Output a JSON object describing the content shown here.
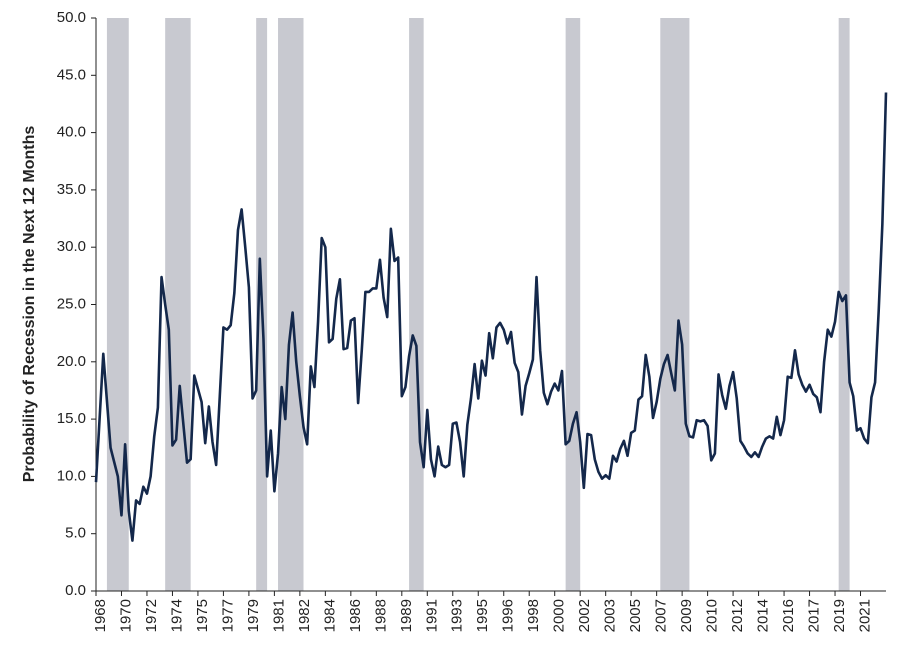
{
  "chart_data": {
    "type": "line",
    "y_label": "Probability of Recession in the Next 12 Months",
    "color": "#14284b",
    "recession_color": "#c8c9d0",
    "recessions": [
      [
        1968.75,
        1970.25
      ],
      [
        1972.75,
        1974.5
      ],
      [
        1979.0,
        1979.75
      ],
      [
        1980.5,
        1982.25
      ],
      [
        1989.5,
        1990.5
      ],
      [
        2000.25,
        2001.25
      ],
      [
        2006.75,
        2008.75
      ],
      [
        2019.0,
        2019.75
      ]
    ],
    "x": [
      1968,
      1968.5,
      1969,
      1969.5,
      1969.75,
      1970,
      1970.25,
      1970.5,
      1970.75,
      1971,
      1971.25,
      1971.5,
      1971.75,
      1972,
      1972.25,
      1972.5,
      1972.75,
      1973,
      1973.25,
      1973.5,
      1973.75,
      1974.25,
      1974.5,
      1974.75,
      1975.25,
      1975.5,
      1975.75,
      1976,
      1976.25,
      1976.5,
      1976.75,
      1977,
      1977.25,
      1977.5,
      1977.75,
      1978,
      1978.25,
      1978.5,
      1978.75,
      1979,
      1979.25,
      1979.5,
      1979.75,
      1980,
      1980.25,
      1980.5,
      1980.75,
      1981,
      1981.25,
      1981.5,
      1981.75,
      1982,
      1982.25,
      1982.5,
      1982.75,
      1983,
      1983.25,
      1983.5,
      1983.75,
      1984,
      1984.25,
      1984.5,
      1984.75,
      1985,
      1985.25,
      1985.5,
      1985.75,
      1986,
      1986.25,
      1986.5,
      1986.75,
      1987,
      1987.25,
      1987.5,
      1987.75,
      1988,
      1988.25,
      1988.5,
      1988.75,
      1989,
      1989.25,
      1989.5,
      1989.75,
      1990,
      1990.25,
      1990.5,
      1990.75,
      1991,
      1991.25,
      1991.5,
      1991.75,
      1992,
      1992.25,
      1992.5,
      1992.75,
      1993,
      1993.25,
      1993.5,
      1993.75,
      1994,
      1994.25,
      1994.5,
      1994.75,
      1995,
      1995.25,
      1995.5,
      1995.75,
      1996,
      1996.25,
      1996.5,
      1996.75,
      1997,
      1997.25,
      1997.5,
      1997.75,
      1998,
      1998.25,
      1998.5,
      1998.75,
      1999,
      1999.25,
      1999.5,
      1999.75,
      2000,
      2000.25,
      2000.5,
      2000.75,
      2001,
      2001.25,
      2001.5,
      2001.75,
      2002,
      2002.25,
      2002.5,
      2002.75,
      2003,
      2003.25,
      2003.5,
      2003.75,
      2004,
      2004.25,
      2004.5,
      2004.75,
      2005,
      2005.25,
      2005.5,
      2005.75,
      2006,
      2006.25,
      2006.5,
      2006.75,
      2007,
      2007.25,
      2007.5,
      2007.75,
      2008,
      2008.25,
      2008.5,
      2008.75,
      2009,
      2009.25,
      2009.5,
      2009.75,
      2010,
      2010.25,
      2010.5,
      2010.75,
      2011,
      2011.25,
      2011.5,
      2011.75,
      2012,
      2012.25,
      2012.5,
      2012.75,
      2013,
      2013.25,
      2013.5,
      2013.75,
      2014,
      2014.25,
      2014.5,
      2014.75,
      2015,
      2015.25,
      2015.5,
      2015.75,
      2016,
      2016.25,
      2016.5,
      2016.75,
      2017,
      2017.25,
      2017.5,
      2017.75,
      2018,
      2018.25,
      2018.5,
      2018.75,
      2019,
      2019.25,
      2019.5,
      2019.75,
      2020,
      2020.25,
      2020.5,
      2020.75,
      2021,
      2021.25,
      2021.5,
      2021.75,
      2022,
      2022.25
    ],
    "values": [
      9.5,
      20.7,
      12.5,
      10,
      6.6,
      12.8,
      7,
      4.4,
      7.9,
      7.6,
      9.1,
      8.5,
      10,
      13.5,
      16,
      27.4,
      25,
      22.8,
      12.7,
      13.2,
      17.9,
      11.2,
      11.5,
      18.8,
      16.5,
      12.9,
      16.1,
      13,
      11,
      17,
      23,
      22.8,
      23.2,
      26,
      31.5,
      33.3,
      30,
      26.5,
      16.8,
      17.5,
      29,
      22,
      10,
      14,
      8.7,
      12,
      17.8,
      15,
      21.5,
      24.3,
      20,
      17,
      14.3,
      12.8,
      19.6,
      17.8,
      23.5,
      30.8,
      30,
      21.7,
      22,
      25.5,
      27.2,
      21.1,
      21.2,
      23.6,
      23.8,
      16.4,
      21,
      26.1,
      26.1,
      26.4,
      26.4,
      28.9,
      25.6,
      23.9,
      31.6,
      28.8,
      29.1,
      17,
      17.8,
      20.5,
      22.3,
      21.4,
      13,
      10.8,
      15.8,
      11.5,
      10,
      12.6,
      11,
      10.8,
      11,
      14.6,
      14.7,
      13,
      10,
      14.5,
      16.8,
      19.8,
      16.8,
      20.1,
      18.8,
      22.5,
      20.3,
      23,
      23.4,
      22.8,
      21.6,
      22.6,
      19.9,
      19.1,
      15.4,
      17.9,
      19,
      20.2,
      27.4,
      21,
      17.3,
      16.3,
      17.4,
      18.1,
      17.5,
      19.2,
      12.8,
      13.1,
      14.6,
      15.6,
      13,
      9,
      13.7,
      13.6,
      11.5,
      10.4,
      9.8,
      10.1,
      9.8,
      11.8,
      11.3,
      12.4,
      13.1,
      11.8,
      13.8,
      14,
      16.7,
      17,
      20.6,
      18.7,
      15.1,
      16.5,
      18.5,
      19.8,
      20.6,
      19,
      17.5,
      23.6,
      21.5,
      14.6,
      13.5,
      13.4,
      14.9,
      14.8,
      14.9,
      14.4,
      11.4,
      12,
      18.9,
      17.1,
      15.9,
      17.9,
      19.1,
      16.8,
      13.1,
      12.6,
      12,
      11.7,
      12.1,
      11.7,
      12.6,
      13.3,
      13.5,
      13.3,
      15.2,
      13.6,
      14.9,
      18.7,
      18.6,
      21,
      18.9,
      18,
      17.4,
      18,
      17.2,
      16.9,
      15.6,
      20,
      22.8,
      22.2,
      23.5,
      26.1,
      25.3,
      25.8,
      18.2,
      17,
      14,
      14.2,
      13.3,
      12.9,
      16.9,
      18.2,
      24.5,
      32,
      43.5
    ],
    "xlim": [
      1968,
      2022.25
    ],
    "xticks": [
      {
        "value": 1968,
        "label": "1968"
      },
      {
        "value": 1969.75,
        "label": "1970"
      },
      {
        "value": 1971.5,
        "label": "1972"
      },
      {
        "value": 1973.25,
        "label": "1974"
      },
      {
        "value": 1975,
        "label": "1975"
      },
      {
        "value": 1976.75,
        "label": "1977"
      },
      {
        "value": 1978.5,
        "label": "1979"
      },
      {
        "value": 1980.25,
        "label": "1981"
      },
      {
        "value": 1982,
        "label": "1982"
      },
      {
        "value": 1983.75,
        "label": "1984"
      },
      {
        "value": 1985.5,
        "label": "1986"
      },
      {
        "value": 1987.25,
        "label": "1988"
      },
      {
        "value": 1989,
        "label": "1989"
      },
      {
        "value": 1990.75,
        "label": "1991"
      },
      {
        "value": 1992.5,
        "label": "1993"
      },
      {
        "value": 1994.25,
        "label": "1995"
      },
      {
        "value": 1996,
        "label": "1996"
      },
      {
        "value": 1997.75,
        "label": "1998"
      },
      {
        "value": 1999.5,
        "label": "2000"
      },
      {
        "value": 2001.25,
        "label": "2002"
      },
      {
        "value": 2003,
        "label": "2003"
      },
      {
        "value": 2004.75,
        "label": "2005"
      },
      {
        "value": 2006.5,
        "label": "2007"
      },
      {
        "value": 2008.25,
        "label": "2009"
      },
      {
        "value": 2010,
        "label": "2010"
      },
      {
        "value": 2011.75,
        "label": "2012"
      },
      {
        "value": 2013.5,
        "label": "2014"
      },
      {
        "value": 2015.25,
        "label": "2016"
      },
      {
        "value": 2017,
        "label": "2017"
      },
      {
        "value": 2018.75,
        "label": "2019"
      },
      {
        "value": 2020.5,
        "label": "2021"
      }
    ],
    "ylim": [
      0,
      50
    ],
    "yticks": [
      {
        "value": 0,
        "label": "0.0"
      },
      {
        "value": 5,
        "label": "5.0"
      },
      {
        "value": 10,
        "label": "10.0"
      },
      {
        "value": 15,
        "label": "15.0"
      },
      {
        "value": 20,
        "label": "20.0"
      },
      {
        "value": 25,
        "label": "25.0"
      },
      {
        "value": 30,
        "label": "30.0"
      },
      {
        "value": 35,
        "label": "35.0"
      },
      {
        "value": 40,
        "label": "40.0"
      },
      {
        "value": 45,
        "label": "45.0"
      },
      {
        "value": 50,
        "label": "50.0"
      }
    ],
    "grid": false
  }
}
